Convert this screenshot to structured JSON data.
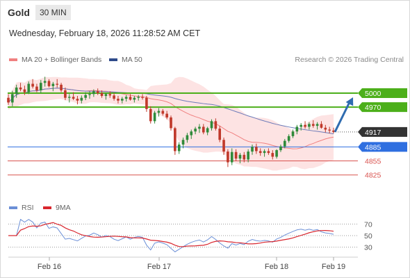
{
  "header": {
    "instrument": "Gold",
    "period": "30 MIN",
    "datetime": "Wednesday, February 18, 2026 11:28:52 AM CET"
  },
  "legend": {
    "ma20_label": "MA 20 + Bollinger Bands",
    "ma50_label": "MA 50",
    "credit": "Research © 2026 Trading Central",
    "rsi_label": "RSI",
    "rsi_ma_label": "9MA"
  },
  "colors": {
    "up_candle": "#2f8a3a",
    "down_candle": "#c0392b",
    "ma20": "#f08080",
    "bollinger_fill": "#fde3e3",
    "ma50": "#6b7ab8",
    "resistance_green": "#4caf1a",
    "pivot_blue": "#2f6fe0",
    "support_red": "#d9534f",
    "last_price_bg": "#333333",
    "arrow": "#2f6cb0",
    "rsi_line": "#6b8fd6",
    "rsi_ma_line": "#d9262e"
  },
  "chart_data": [
    {
      "type": "candlestick",
      "title": "Gold 30 MIN",
      "ylim": [
        4780,
        5055
      ],
      "x_labels": [
        "Feb 16",
        "Feb 17",
        "Feb 18",
        "Feb 19"
      ],
      "levels": [
        {
          "value": 5000,
          "label": "5000",
          "kind": "resistance"
        },
        {
          "value": 4970,
          "label": "4970",
          "kind": "resistance"
        },
        {
          "value": 4917,
          "label": "4917",
          "kind": "last-price"
        },
        {
          "value": 4885,
          "label": "4885",
          "kind": "pivot"
        },
        {
          "value": 4855,
          "label": "4855",
          "kind": "support"
        },
        {
          "value": 4825,
          "label": "4825",
          "kind": "support"
        }
      ],
      "projection": {
        "from": 4917,
        "to": 5000
      },
      "candles_ohlc": [
        [
          4990,
          4998,
          4975,
          4980
        ],
        [
          4980,
          5005,
          4972,
          4998
        ],
        [
          4998,
          5018,
          4990,
          5012
        ],
        [
          5012,
          5022,
          5004,
          5008
        ],
        [
          5008,
          5016,
          4996,
          5002
        ],
        [
          5002,
          5025,
          4998,
          5020
        ],
        [
          5020,
          5030,
          5010,
          5014
        ],
        [
          5014,
          5020,
          5002,
          5006
        ],
        [
          5006,
          5028,
          5000,
          5022
        ],
        [
          5022,
          5035,
          5014,
          5026
        ],
        [
          5026,
          5030,
          5012,
          5015
        ],
        [
          5015,
          5024,
          5004,
          5020
        ],
        [
          5020,
          5030,
          5012,
          5018
        ],
        [
          5018,
          5022,
          5002,
          5006
        ],
        [
          5006,
          5012,
          4985,
          4990
        ],
        [
          4990,
          4998,
          4980,
          4992
        ],
        [
          4992,
          5002,
          4985,
          4988
        ],
        [
          4988,
          4994,
          4976,
          4984
        ],
        [
          4984,
          4995,
          4978,
          4990
        ],
        [
          4990,
          5002,
          4985,
          4996
        ],
        [
          4996,
          5004,
          4988,
          4998
        ],
        [
          4998,
          5008,
          4992,
          5004
        ],
        [
          5004,
          5010,
          4996,
          5000
        ],
        [
          5000,
          5006,
          4990,
          4994
        ],
        [
          4994,
          5000,
          4986,
          4998
        ],
        [
          4998,
          5004,
          4990,
          4995
        ],
        [
          4995,
          5000,
          4984,
          4988
        ],
        [
          4988,
          4994,
          4978,
          4984
        ],
        [
          4984,
          4992,
          4978,
          4988
        ],
        [
          4988,
          4996,
          4982,
          4992
        ],
        [
          4992,
          4998,
          4984,
          4986
        ],
        [
          4986,
          4994,
          4980,
          4990
        ],
        [
          4990,
          4996,
          4984,
          4992
        ],
        [
          4992,
          4998,
          4986,
          4990
        ],
        [
          4990,
          4994,
          4960,
          4966
        ],
        [
          4966,
          4972,
          4935,
          4940
        ],
        [
          4940,
          4962,
          4935,
          4958
        ],
        [
          4958,
          4968,
          4950,
          4962
        ],
        [
          4962,
          4966,
          4952,
          4956
        ],
        [
          4956,
          4962,
          4944,
          4948
        ],
        [
          4948,
          4952,
          4920,
          4925
        ],
        [
          4925,
          4928,
          4868,
          4876
        ],
        [
          4876,
          4895,
          4870,
          4890
        ],
        [
          4890,
          4905,
          4882,
          4900
        ],
        [
          4900,
          4915,
          4894,
          4910
        ],
        [
          4910,
          4922,
          4902,
          4918
        ],
        [
          4918,
          4928,
          4912,
          4924
        ],
        [
          4924,
          4934,
          4915,
          4928
        ],
        [
          4928,
          4934,
          4912,
          4916
        ],
        [
          4916,
          4928,
          4910,
          4925
        ],
        [
          4925,
          4944,
          4920,
          4940
        ],
        [
          4940,
          4946,
          4920,
          4924
        ],
        [
          4924,
          4930,
          4895,
          4900
        ],
        [
          4900,
          4905,
          4868,
          4875
        ],
        [
          4875,
          4880,
          4842,
          4852
        ],
        [
          4852,
          4882,
          4846,
          4874
        ],
        [
          4874,
          4880,
          4855,
          4860
        ],
        [
          4860,
          4872,
          4850,
          4868
        ],
        [
          4868,
          4874,
          4852,
          4858
        ],
        [
          4858,
          4880,
          4852,
          4875
        ],
        [
          4875,
          4890,
          4868,
          4885
        ],
        [
          4885,
          4892,
          4870,
          4876
        ],
        [
          4876,
          4882,
          4866,
          4872
        ],
        [
          4872,
          4880,
          4864,
          4876
        ],
        [
          4876,
          4882,
          4868,
          4872
        ],
        [
          4872,
          4878,
          4858,
          4864
        ],
        [
          4864,
          4880,
          4860,
          4878
        ],
        [
          4878,
          4890,
          4874,
          4886
        ],
        [
          4886,
          4902,
          4882,
          4898
        ],
        [
          4898,
          4912,
          4894,
          4908
        ],
        [
          4908,
          4922,
          4904,
          4918
        ],
        [
          4918,
          4932,
          4912,
          4928
        ],
        [
          4928,
          4936,
          4920,
          4932
        ],
        [
          4932,
          4940,
          4924,
          4928
        ],
        [
          4928,
          4938,
          4922,
          4934
        ],
        [
          4934,
          4942,
          4926,
          4930
        ],
        [
          4930,
          4938,
          4922,
          4934
        ],
        [
          4934,
          4940,
          4924,
          4926
        ],
        [
          4926,
          4932,
          4916,
          4922
        ],
        [
          4922,
          4928,
          4914,
          4920
        ],
        [
          4920,
          4926,
          4914,
          4917
        ]
      ]
    },
    {
      "type": "line",
      "title": "RSI",
      "ylim": [
        20,
        80
      ],
      "yticks": [
        70,
        50,
        30
      ],
      "x_labels": [
        "Feb 16",
        "Feb 17",
        "Feb 18",
        "Feb 19"
      ]
    }
  ]
}
